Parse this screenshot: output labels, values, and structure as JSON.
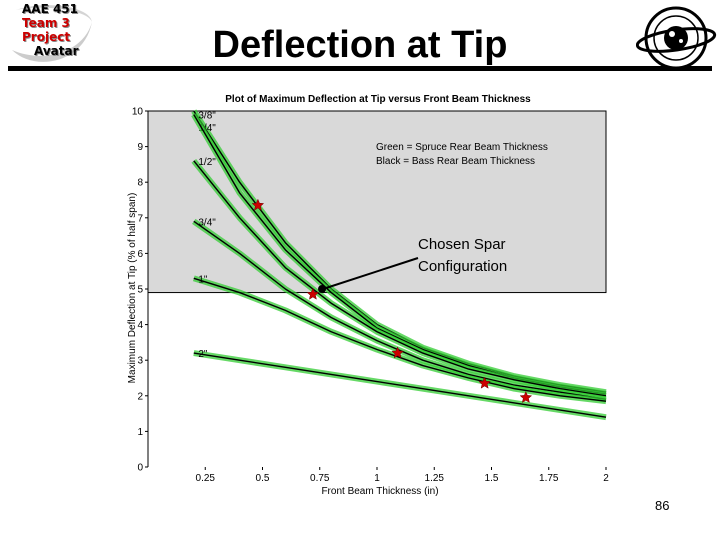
{
  "slide": {
    "title": "Deflection at Tip",
    "page_number": "86",
    "logo_left_lines": [
      "AAE 451",
      "Team 3",
      "Project",
      "Avatar"
    ],
    "logo_right_text": "Purdue University Aeronautics & Astronautics",
    "colors": {
      "accent_red": "#cc0000",
      "curve_green": "#33cc33",
      "box_fill": "#d9d9d9"
    }
  },
  "chart_data": {
    "type": "line",
    "title": "Plot of Maximum Deflection at Tip versus Front Beam Thickness",
    "xlabel": "Front Beam Thickness (in)",
    "ylabel": "Maximum Deflection at Tip (% of half span)",
    "xlim": [
      0,
      2
    ],
    "ylim": [
      0,
      10
    ],
    "xticks": [
      "0.25",
      "0.5",
      "0.75",
      "1",
      "1.25",
      "1.5",
      "1.75",
      "2"
    ],
    "yticks": [
      "0",
      "1",
      "2",
      "3",
      "4",
      "5",
      "6",
      "7",
      "8",
      "9",
      "10"
    ],
    "legend_lines": [
      "Green = Spruce Rear Beam Thickness",
      "Black = Bass Rear Beam Thickness"
    ],
    "legend_placement": "top-right",
    "highlight_region": {
      "x": [
        0,
        2
      ],
      "y": [
        4.9,
        10
      ]
    },
    "series": [
      {
        "name": "1/4\"",
        "x": [
          0.2,
          0.4,
          0.6,
          0.8,
          1.0,
          1.2,
          1.4,
          1.6,
          1.8,
          2.0
        ],
        "y": [
          10.0,
          8.0,
          6.3,
          5.0,
          4.0,
          3.35,
          2.9,
          2.55,
          2.3,
          2.1
        ]
      },
      {
        "name": "3/8\"",
        "x": [
          0.2,
          0.4,
          0.6,
          0.8,
          1.0,
          1.2,
          1.4,
          1.6,
          1.8,
          2.0
        ],
        "y": [
          9.9,
          7.7,
          6.1,
          4.9,
          3.9,
          3.3,
          2.85,
          2.5,
          2.25,
          2.05
        ]
      },
      {
        "name": "1/2\"",
        "x": [
          0.2,
          0.4,
          0.6,
          0.8,
          1.0,
          1.2,
          1.4,
          1.6,
          1.8,
          2.0
        ],
        "y": [
          8.6,
          7.0,
          5.6,
          4.6,
          3.8,
          3.2,
          2.75,
          2.45,
          2.2,
          2.0
        ]
      },
      {
        "name": "3/4\"",
        "x": [
          0.2,
          0.4,
          0.6,
          0.8,
          1.0,
          1.2,
          1.4,
          1.6,
          1.8,
          2.0
        ],
        "y": [
          6.9,
          6.0,
          5.0,
          4.2,
          3.55,
          3.0,
          2.6,
          2.3,
          2.1,
          1.9
        ]
      },
      {
        "name": "1\"",
        "x": [
          0.2,
          0.4,
          0.6,
          0.8,
          1.0,
          1.2,
          1.4,
          1.6,
          1.8,
          2.0
        ],
        "y": [
          5.3,
          4.9,
          4.4,
          3.8,
          3.3,
          2.85,
          2.5,
          2.2,
          2.0,
          1.85
        ]
      },
      {
        "name": "2\"",
        "x": [
          0.2,
          0.4,
          0.6,
          0.8,
          1.0,
          1.2,
          1.4,
          1.6,
          1.8,
          2.0
        ],
        "y": [
          3.2,
          3.0,
          2.8,
          2.6,
          2.4,
          2.2,
          2.0,
          1.8,
          1.6,
          1.4
        ]
      }
    ],
    "markers": [
      {
        "x": 0.48,
        "y": 7.35
      },
      {
        "x": 0.72,
        "y": 4.85
      },
      {
        "x": 1.09,
        "y": 3.2
      },
      {
        "x": 1.47,
        "y": 2.35
      },
      {
        "x": 1.65,
        "y": 1.95
      }
    ],
    "annotation": {
      "lines": [
        "Chosen Spar",
        "Configuration"
      ],
      "point": {
        "x": 0.76,
        "y": 5.0
      }
    }
  }
}
